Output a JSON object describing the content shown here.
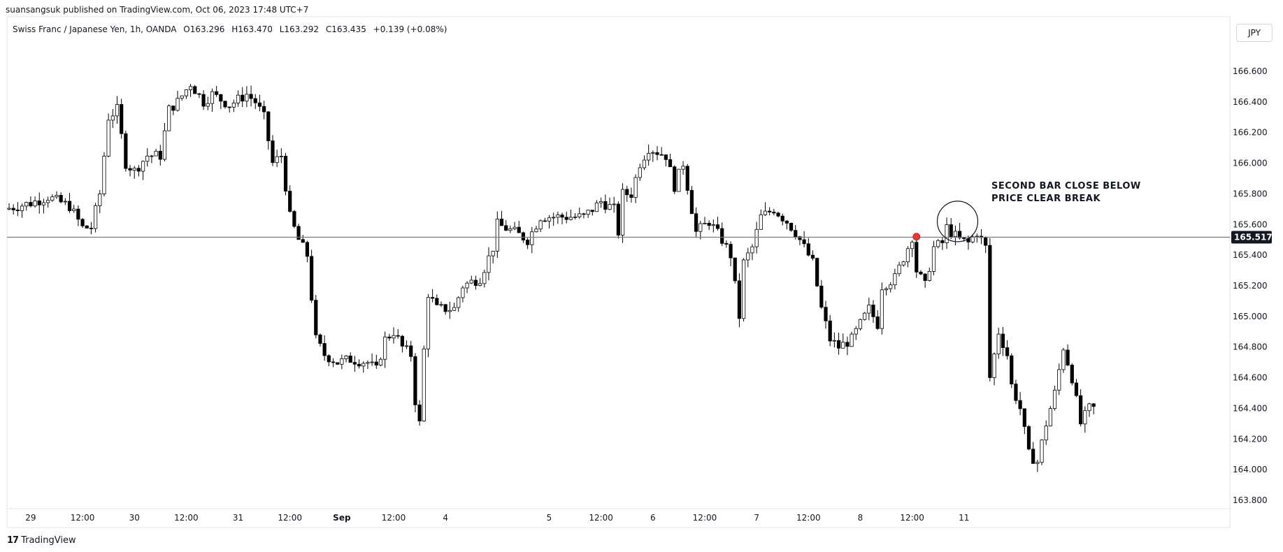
{
  "publisher_line": "suansangsuk published on TradingView.com, Oct 06, 2023 17:48 UTC+7",
  "legend": {
    "symbol": "Swiss Franc / Japanese Yen, 1h, OANDA",
    "open": "O163.296",
    "high": "H163.470",
    "low": "L163.292",
    "close": "C163.435",
    "change": "+0.139 (+0.08%)"
  },
  "currency": "JPY",
  "footer": {
    "brand": "TradingView",
    "mark": "17"
  },
  "colors": {
    "up_body": "#ffffff",
    "down_body": "#000000",
    "wick": "#000000",
    "marker": "#e53935",
    "horizontal_line": "#787b86"
  },
  "chart_data": {
    "type": "candlestick",
    "y_axis": {
      "range": [
        163.72,
        166.87
      ],
      "ticks": [
        163.8,
        164.0,
        164.2,
        164.4,
        164.6,
        164.8,
        165.0,
        165.2,
        165.4,
        165.6,
        165.8,
        166.0,
        166.2,
        166.4,
        166.6
      ],
      "tick_labels": [
        "163.800",
        "164.000",
        "164.200",
        "164.400",
        "164.600",
        "164.800",
        "165.000",
        "165.200",
        "165.400",
        "165.600",
        "165.800",
        "166.000",
        "166.200",
        "166.400",
        "166.600"
      ],
      "side": "right"
    },
    "x_axis": {
      "unit": "hours from first visible bar",
      "range": [
        0,
        284
      ],
      "ticks": [
        {
          "x": 5,
          "label": "29"
        },
        {
          "x": 17,
          "label": "12:00"
        },
        {
          "x": 29,
          "label": "30"
        },
        {
          "x": 41,
          "label": "12:00"
        },
        {
          "x": 53,
          "label": "31"
        },
        {
          "x": 65,
          "label": "12:00"
        },
        {
          "x": 77,
          "label": "Sep"
        },
        {
          "x": 89,
          "label": "12:00"
        },
        {
          "x": 101,
          "label": "4"
        },
        {
          "x": 125,
          "label": "5"
        },
        {
          "x": 137,
          "label": "12:00"
        },
        {
          "x": 149,
          "label": "6"
        },
        {
          "x": 161,
          "label": "12:00"
        },
        {
          "x": 173,
          "label": "7"
        },
        {
          "x": 185,
          "label": "12:00"
        },
        {
          "x": 197,
          "label": "8"
        },
        {
          "x": 209,
          "label": "12:00"
        },
        {
          "x": 221,
          "label": "11"
        }
      ]
    },
    "horizontal_line": {
      "value": 165.517,
      "label": "165.517"
    },
    "annotation": {
      "lines": [
        "SECOND BAR CLOSE BELOW",
        "PRICE CLEAR BREAK"
      ]
    },
    "marker": {
      "x": 210,
      "y": 165.52
    },
    "circle": {
      "x": 219.5,
      "y": 165.62
    },
    "waypoints": [
      [
        0,
        165.7
      ],
      [
        3,
        165.72
      ],
      [
        6,
        165.74
      ],
      [
        10,
        165.78
      ],
      [
        15,
        165.72
      ],
      [
        18,
        165.58
      ],
      [
        20,
        165.58
      ],
      [
        22,
        165.8
      ],
      [
        24,
        166.3
      ],
      [
        26,
        166.35
      ],
      [
        28,
        166.0
      ],
      [
        30,
        165.95
      ],
      [
        33,
        166.05
      ],
      [
        36,
        166.05
      ],
      [
        38,
        166.35
      ],
      [
        40,
        166.4
      ],
      [
        43,
        166.52
      ],
      [
        46,
        166.4
      ],
      [
        48,
        166.45
      ],
      [
        52,
        166.38
      ],
      [
        56,
        166.45
      ],
      [
        58,
        166.4
      ],
      [
        60,
        166.3
      ],
      [
        62,
        166.0
      ],
      [
        64,
        166.05
      ],
      [
        66,
        165.65
      ],
      [
        68,
        165.5
      ],
      [
        70,
        165.4
      ],
      [
        72,
        164.85
      ],
      [
        74,
        164.75
      ],
      [
        77,
        164.7
      ],
      [
        80,
        164.72
      ],
      [
        84,
        164.7
      ],
      [
        86,
        164.65
      ],
      [
        88,
        164.85
      ],
      [
        90,
        164.9
      ],
      [
        92,
        164.8
      ],
      [
        94,
        164.75
      ],
      [
        95,
        164.45
      ],
      [
        96,
        164.3
      ],
      [
        97,
        164.78
      ],
      [
        98,
        165.15
      ],
      [
        100,
        165.05
      ],
      [
        104,
        165.05
      ],
      [
        106,
        165.2
      ],
      [
        110,
        165.25
      ],
      [
        113,
        165.45
      ],
      [
        114,
        165.6
      ],
      [
        118,
        165.55
      ],
      [
        121,
        165.5
      ],
      [
        124,
        165.65
      ],
      [
        128,
        165.65
      ],
      [
        134,
        165.65
      ],
      [
        138,
        165.75
      ],
      [
        141,
        165.7
      ],
      [
        142,
        165.55
      ],
      [
        143,
        165.8
      ],
      [
        145,
        165.8
      ],
      [
        147,
        166.0
      ],
      [
        149,
        166.1
      ],
      [
        153,
        166.05
      ],
      [
        155,
        165.85
      ],
      [
        157,
        166.0
      ],
      [
        158,
        165.85
      ],
      [
        160,
        165.55
      ],
      [
        163,
        165.62
      ],
      [
        166,
        165.5
      ],
      [
        168,
        165.4
      ],
      [
        170,
        165.0
      ],
      [
        171,
        165.35
      ],
      [
        173,
        165.45
      ],
      [
        175,
        165.65
      ],
      [
        178,
        165.7
      ],
      [
        181,
        165.62
      ],
      [
        183,
        165.55
      ],
      [
        185,
        165.45
      ],
      [
        187,
        165.35
      ],
      [
        189,
        165.05
      ],
      [
        191,
        164.85
      ],
      [
        193,
        164.8
      ],
      [
        196,
        164.85
      ],
      [
        198,
        164.95
      ],
      [
        200,
        165.05
      ],
      [
        202,
        164.95
      ],
      [
        203,
        165.2
      ],
      [
        206,
        165.25
      ],
      [
        209,
        165.45
      ],
      [
        210,
        165.52
      ],
      [
        211,
        165.3
      ],
      [
        213,
        165.2
      ],
      [
        215,
        165.45
      ],
      [
        217,
        165.48
      ],
      [
        218,
        165.58
      ],
      [
        219,
        165.55
      ],
      [
        221,
        165.5
      ],
      [
        223,
        165.48
      ],
      [
        225,
        165.55
      ],
      [
        227,
        165.45
      ],
      [
        228,
        164.6
      ],
      [
        230,
        164.9
      ],
      [
        232,
        164.75
      ],
      [
        233,
        164.55
      ],
      [
        235,
        164.4
      ],
      [
        237,
        164.1
      ],
      [
        239,
        164.05
      ],
      [
        241,
        164.3
      ],
      [
        243,
        164.5
      ],
      [
        245,
        164.8
      ],
      [
        247,
        164.6
      ],
      [
        249,
        164.3
      ],
      [
        251,
        164.4
      ]
    ],
    "volatility": 0.045
  }
}
